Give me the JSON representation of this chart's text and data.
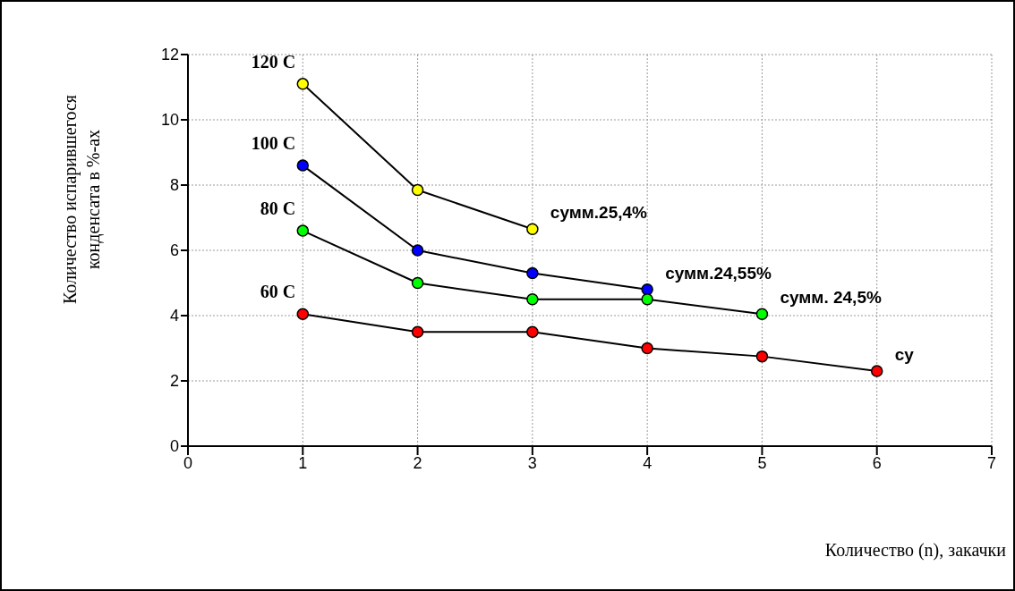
{
  "chart_data": {
    "type": "line",
    "xlabel": "Количество (n), закачки",
    "ylabel": "Количество испарившегося конденсата в %-ах",
    "xlim": [
      0,
      7
    ],
    "xticks": [
      0,
      1,
      2,
      3,
      4,
      5,
      6,
      7
    ],
    "ylim": [
      0,
      12
    ],
    "yticks": [
      0,
      2,
      4,
      6,
      8,
      10,
      12
    ],
    "grid": true,
    "legend": false,
    "marker": "circle",
    "line_style": "solid",
    "series": [
      {
        "name": "120 C",
        "color": "#ffff00",
        "x": [
          1,
          2,
          3
        ],
        "values": [
          11.1,
          7.85,
          6.65
        ]
      },
      {
        "name": "100 C",
        "color": "#0000ff",
        "x": [
          1,
          2,
          3,
          4
        ],
        "values": [
          8.6,
          6.0,
          5.3,
          4.8
        ]
      },
      {
        "name": "80 C",
        "color": "#00ff00",
        "x": [
          1,
          2,
          3,
          4,
          5
        ],
        "values": [
          6.6,
          5.0,
          4.5,
          4.5,
          4.05
        ]
      },
      {
        "name": "60 C",
        "color": "#ff0000",
        "x": [
          1,
          2,
          3,
          4,
          5,
          6
        ],
        "values": [
          4.05,
          3.5,
          3.5,
          3.0,
          2.75,
          2.3
        ]
      }
    ],
    "annotations": [
      {
        "text": "сумм.25,4%",
        "x": 3,
        "y": 6.65
      },
      {
        "text": "сумм.24,55%",
        "x": 4,
        "y": 4.8
      },
      {
        "text": "сумм. 24,5%",
        "x": 5,
        "y": 4.05
      },
      {
        "text": "су",
        "x": 6,
        "y": 2.3
      }
    ]
  }
}
